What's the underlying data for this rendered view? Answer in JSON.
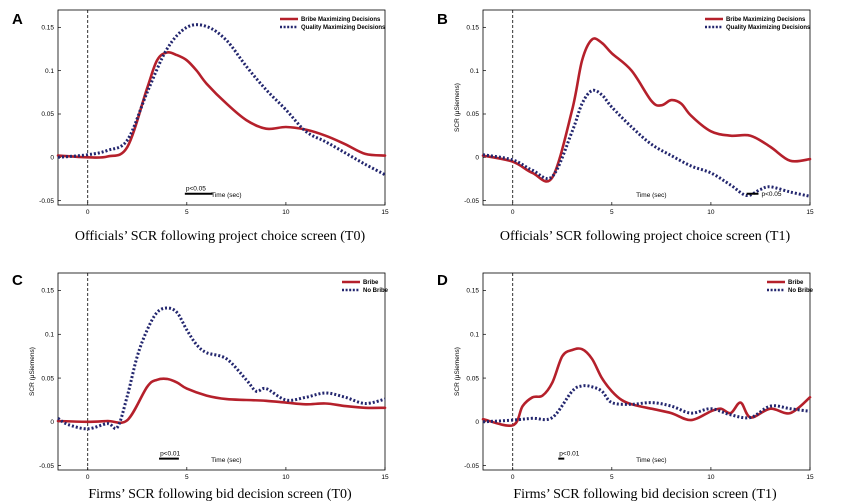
{
  "chart_data": [
    {
      "panel": "A",
      "type": "line",
      "caption": "Officials’ SCR following project choice screen (T0)",
      "xlabel": "Time (sec)",
      "ylabel": "",
      "xlim": [
        -1.5,
        15
      ],
      "ylim": [
        -0.055,
        0.17
      ],
      "xticks": [
        0,
        5,
        10,
        15
      ],
      "yticks": [
        -0.05,
        0,
        0.05,
        0.1,
        0.15
      ],
      "ytick_labels": [
        "-0.05",
        "0",
        "0.05",
        "0.1",
        "0.15"
      ],
      "significance": {
        "label": "p<0.05",
        "range": [
          4.9,
          6.3
        ]
      },
      "legend": {
        "position": "top-right"
      },
      "series": [
        {
          "name": "Bribe Maximizing Decisions",
          "style": "solid",
          "color": "#b5202b",
          "points": [
            [
              -1.5,
              0.002
            ],
            [
              0,
              0
            ],
            [
              1,
              0.001
            ],
            [
              2,
              0.012
            ],
            [
              3,
              0.08
            ],
            [
              3.5,
              0.112
            ],
            [
              4,
              0.121
            ],
            [
              4.5,
              0.118
            ],
            [
              5,
              0.112
            ],
            [
              5.5,
              0.1
            ],
            [
              6,
              0.085
            ],
            [
              7,
              0.062
            ],
            [
              8,
              0.043
            ],
            [
              9,
              0.033
            ],
            [
              10,
              0.035
            ],
            [
              11,
              0.032
            ],
            [
              12,
              0.025
            ],
            [
              13,
              0.015
            ],
            [
              14,
              0.004
            ],
            [
              15,
              0.002
            ]
          ]
        },
        {
          "name": "Quality Maximizing Decisions",
          "style": "dotted",
          "color": "#23266e",
          "points": [
            [
              -1.5,
              0
            ],
            [
              0,
              0.003
            ],
            [
              1,
              0.008
            ],
            [
              2,
              0.02
            ],
            [
              3,
              0.075
            ],
            [
              4,
              0.125
            ],
            [
              5,
              0.15
            ],
            [
              6,
              0.151
            ],
            [
              7,
              0.135
            ],
            [
              8,
              0.105
            ],
            [
              9,
              0.078
            ],
            [
              10,
              0.055
            ],
            [
              11,
              0.03
            ],
            [
              12,
              0.018
            ],
            [
              13,
              0.005
            ],
            [
              14,
              -0.008
            ],
            [
              15,
              -0.02
            ]
          ]
        }
      ]
    },
    {
      "panel": "B",
      "type": "line",
      "caption": "Officials’ SCR following project choice screen (T1)",
      "xlabel": "Time (sec)",
      "ylabel": "SCR (μSiemens)",
      "xlim": [
        -1.5,
        15
      ],
      "ylim": [
        -0.055,
        0.17
      ],
      "xticks": [
        0,
        5,
        10,
        15
      ],
      "yticks": [
        -0.05,
        0,
        0.05,
        0.1,
        0.15
      ],
      "ytick_labels": [
        "-0.05",
        "0",
        "0.05",
        "0.1",
        "0.15"
      ],
      "significance": {
        "label": "p<0.05",
        "range": [
          11.8,
          12.4
        ]
      },
      "legend": {
        "position": "top-right"
      },
      "series": [
        {
          "name": "Bribe Maximizing Decisions",
          "style": "solid",
          "color": "#b5202b",
          "points": [
            [
              -1.5,
              0.002
            ],
            [
              0,
              -0.005
            ],
            [
              1,
              -0.018
            ],
            [
              2,
              -0.023
            ],
            [
              3,
              0.055
            ],
            [
              3.5,
              0.112
            ],
            [
              4,
              0.136
            ],
            [
              4.5,
              0.132
            ],
            [
              5,
              0.12
            ],
            [
              6,
              0.1
            ],
            [
              7,
              0.065
            ],
            [
              7.5,
              0.06
            ],
            [
              8,
              0.066
            ],
            [
              8.5,
              0.062
            ],
            [
              9,
              0.048
            ],
            [
              10,
              0.03
            ],
            [
              11,
              0.025
            ],
            [
              12,
              0.025
            ],
            [
              13,
              0.012
            ],
            [
              14,
              -0.004
            ],
            [
              15,
              -0.002
            ]
          ]
        },
        {
          "name": "Quality Maximizing Decisions",
          "style": "dotted",
          "color": "#23266e",
          "points": [
            [
              -1.5,
              0.003
            ],
            [
              0,
              -0.003
            ],
            [
              1,
              -0.015
            ],
            [
              2,
              -0.022
            ],
            [
              3,
              0.03
            ],
            [
              3.5,
              0.062
            ],
            [
              4,
              0.077
            ],
            [
              4.5,
              0.072
            ],
            [
              5,
              0.058
            ],
            [
              6,
              0.035
            ],
            [
              7,
              0.015
            ],
            [
              8,
              0.002
            ],
            [
              9,
              -0.01
            ],
            [
              10,
              -0.018
            ],
            [
              11,
              -0.032
            ],
            [
              11.8,
              -0.044
            ],
            [
              12.5,
              -0.037
            ],
            [
              13,
              -0.034
            ],
            [
              14,
              -0.04
            ],
            [
              15,
              -0.045
            ]
          ]
        }
      ]
    },
    {
      "panel": "C",
      "type": "line",
      "caption": "Firms’ SCR following bid decision screen (T0)",
      "xlabel": "Time (sec)",
      "ylabel": "SCR (μSiemens)",
      "xlim": [
        -1.5,
        15
      ],
      "ylim": [
        -0.055,
        0.17
      ],
      "xticks": [
        0,
        5,
        10,
        15
      ],
      "yticks": [
        -0.05,
        0,
        0.05,
        0.1,
        0.15
      ],
      "ytick_labels": [
        "-0.05",
        "0",
        "0.05",
        "0.1",
        "0.15"
      ],
      "significance": {
        "label": "p<0.01",
        "range": [
          3.6,
          4.6
        ]
      },
      "legend": {
        "position": "top-right"
      },
      "series": [
        {
          "name": "Bribe",
          "style": "solid",
          "color": "#b5202b",
          "points": [
            [
              -1.5,
              0.001
            ],
            [
              0,
              0
            ],
            [
              1,
              0.001
            ],
            [
              2,
              0.002
            ],
            [
              3,
              0.04
            ],
            [
              3.5,
              0.048
            ],
            [
              4,
              0.049
            ],
            [
              4.5,
              0.045
            ],
            [
              5,
              0.038
            ],
            [
              6,
              0.03
            ],
            [
              7,
              0.026
            ],
            [
              8,
              0.025
            ],
            [
              9,
              0.024
            ],
            [
              10,
              0.022
            ],
            [
              11,
              0.02
            ],
            [
              12,
              0.021
            ],
            [
              13,
              0.018
            ],
            [
              14,
              0.016
            ],
            [
              15,
              0.016
            ]
          ]
        },
        {
          "name": "No Bribe",
          "style": "dotted",
          "color": "#23266e",
          "points": [
            [
              -1.5,
              0.004
            ],
            [
              -1,
              -0.003
            ],
            [
              0,
              -0.008
            ],
            [
              1,
              -0.002
            ],
            [
              1.5,
              -0.006
            ],
            [
              2,
              0.03
            ],
            [
              2.5,
              0.075
            ],
            [
              3,
              0.105
            ],
            [
              3.5,
              0.125
            ],
            [
              4,
              0.13
            ],
            [
              4.5,
              0.125
            ],
            [
              5,
              0.105
            ],
            [
              5.5,
              0.088
            ],
            [
              6,
              0.079
            ],
            [
              7,
              0.072
            ],
            [
              8,
              0.048
            ],
            [
              8.5,
              0.035
            ],
            [
              9,
              0.038
            ],
            [
              10,
              0.025
            ],
            [
              11,
              0.028
            ],
            [
              12,
              0.033
            ],
            [
              13,
              0.028
            ],
            [
              14,
              0.021
            ],
            [
              15,
              0.026
            ]
          ]
        }
      ]
    },
    {
      "panel": "D",
      "type": "line",
      "caption": "Firms’ SCR following bid decision screen (T1)",
      "xlabel": "Time (sec)",
      "ylabel": "SCR (μSiemens)",
      "xlim": [
        -1.5,
        15
      ],
      "ylim": [
        -0.055,
        0.17
      ],
      "xticks": [
        0,
        5,
        10,
        15
      ],
      "yticks": [
        -0.05,
        0,
        0.05,
        0.1,
        0.15
      ],
      "ytick_labels": [
        "-0.05",
        "0",
        "0.05",
        "0.1",
        "0.15"
      ],
      "significance": {
        "label": "p<0.01",
        "range": [
          2.3,
          2.6
        ]
      },
      "legend": {
        "position": "top-right"
      },
      "series": [
        {
          "name": "Bribe",
          "style": "solid",
          "color": "#b5202b",
          "points": [
            [
              -1.5,
              0.003
            ],
            [
              0,
              -0.004
            ],
            [
              0.5,
              0.018
            ],
            [
              1,
              0.028
            ],
            [
              1.5,
              0.03
            ],
            [
              2,
              0.045
            ],
            [
              2.5,
              0.075
            ],
            [
              3,
              0.082
            ],
            [
              3.5,
              0.083
            ],
            [
              4,
              0.072
            ],
            [
              4.5,
              0.05
            ],
            [
              5,
              0.035
            ],
            [
              5.5,
              0.025
            ],
            [
              6,
              0.02
            ],
            [
              7,
              0.015
            ],
            [
              8,
              0.01
            ],
            [
              9,
              0.002
            ],
            [
              10,
              0.012
            ],
            [
              10.5,
              0.015
            ],
            [
              11,
              0.01
            ],
            [
              11.5,
              0.022
            ],
            [
              12,
              0.005
            ],
            [
              13,
              0.015
            ],
            [
              14,
              0.01
            ],
            [
              15,
              0.028
            ]
          ]
        },
        {
          "name": "No Bribe",
          "style": "dotted",
          "color": "#23266e",
          "points": [
            [
              -1.5,
              0
            ],
            [
              0,
              0.002
            ],
            [
              1,
              0.004
            ],
            [
              2,
              0.005
            ],
            [
              3,
              0.035
            ],
            [
              3.5,
              0.041
            ],
            [
              4,
              0.04
            ],
            [
              4.5,
              0.035
            ],
            [
              5,
              0.022
            ],
            [
              6,
              0.02
            ],
            [
              7,
              0.022
            ],
            [
              8,
              0.018
            ],
            [
              9,
              0.01
            ],
            [
              10,
              0.015
            ],
            [
              11,
              0.008
            ],
            [
              12,
              0.005
            ],
            [
              13,
              0.018
            ],
            [
              14,
              0.015
            ],
            [
              15,
              0.012
            ]
          ]
        }
      ]
    }
  ]
}
